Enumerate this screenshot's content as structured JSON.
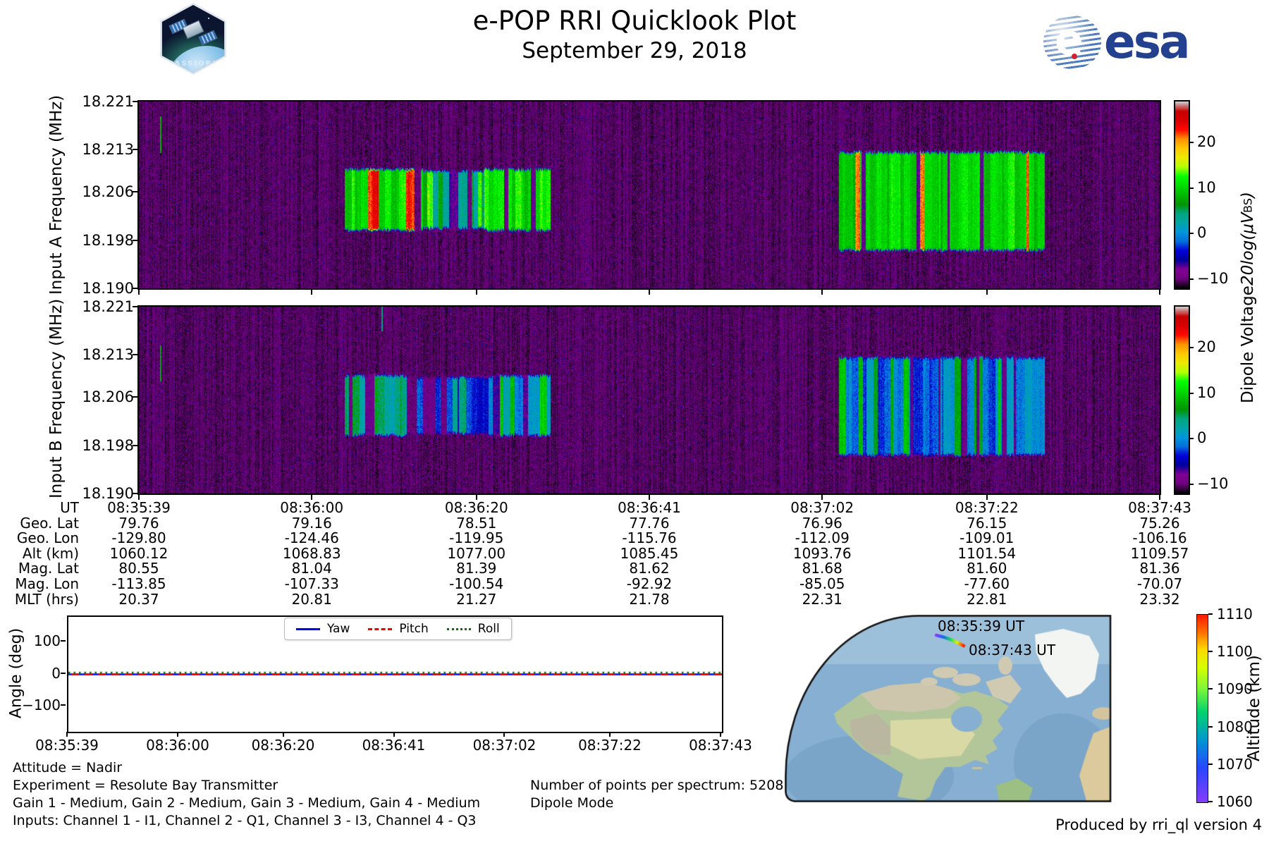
{
  "header": {
    "title": "e-POP RRI Quicklook Plot",
    "date": "September 29, 2018",
    "mission_patch_label": "CASSIOPE",
    "esa_logo_text": "esa",
    "esa_globe_letter": "e"
  },
  "colorbar_label": {
    "prefix": "Dipole Voltage ",
    "math": "20log(μV",
    "sub": "BS",
    "close": ")"
  },
  "chart_data": [
    {
      "id": "input_a_spectrogram",
      "type": "heatmap",
      "ylabel": "Input A Frequency (MHz)",
      "yticks": [
        "18.221",
        "18.213",
        "18.206",
        "18.198",
        "18.190"
      ],
      "ylim_mhz": [
        18.19,
        18.221
      ],
      "x_start_ut": "08:35:39",
      "x_end_ut": "08:37:43",
      "duration_s": 124,
      "colormap": "nipy_spectral",
      "value_range": [
        -12,
        29
      ],
      "colorbar_ticks": [
        "20",
        "10",
        "0",
        "−10"
      ],
      "background_level_db": -10.5,
      "bursts": [
        {
          "t_start_s": 25,
          "t_end_s": 34.5,
          "f_low_mhz": 18.2,
          "f_high_mhz": 18.2095,
          "base_level": 11,
          "hot_level": 23,
          "hot_fraction": 0.2,
          "gap_fraction": 0.1
        },
        {
          "t_start_s": 34.5,
          "t_end_s": 42,
          "f_low_mhz": 18.2003,
          "f_high_mhz": 18.2092,
          "base_level": 5,
          "hot_level": 13,
          "hot_fraction": 0.06,
          "gap_fraction": 0.22
        },
        {
          "t_start_s": 42,
          "t_end_s": 50,
          "f_low_mhz": 18.2,
          "f_high_mhz": 18.2095,
          "base_level": 11,
          "hot_level": 23,
          "hot_fraction": 0.16,
          "gap_fraction": 0.1
        },
        {
          "t_start_s": 85,
          "t_end_s": 110,
          "f_low_mhz": 18.1967,
          "f_high_mhz": 18.2123,
          "base_level": 10,
          "hot_level": 21,
          "hot_fraction": 0.06,
          "gap_fraction": 0.16
        }
      ],
      "artifacts": [
        {
          "t_s": 2.6,
          "f_low_mhz": 18.2125,
          "f_high_mhz": 18.2185,
          "level": 8
        }
      ]
    },
    {
      "id": "input_b_spectrogram",
      "type": "heatmap",
      "ylabel": "Input B Frequency (MHz)",
      "yticks": [
        "18.221",
        "18.213",
        "18.206",
        "18.198",
        "18.190"
      ],
      "ylim_mhz": [
        18.19,
        18.221
      ],
      "x_start_ut": "08:35:39",
      "x_end_ut": "08:37:43",
      "duration_s": 124,
      "colormap": "nipy_spectral",
      "value_range": [
        -12,
        29
      ],
      "colorbar_ticks": [
        "20",
        "10",
        "0",
        "−10"
      ],
      "background_level_db": -10.5,
      "bursts": [
        {
          "t_start_s": 25,
          "t_end_s": 32.5,
          "f_low_mhz": 18.2,
          "f_high_mhz": 18.2093,
          "base_level": 4,
          "hot_level": 11,
          "hot_fraction": 0.12,
          "gap_fraction": 0.22
        },
        {
          "t_start_s": 32.5,
          "t_end_s": 42.5,
          "f_low_mhz": 18.2003,
          "f_high_mhz": 18.209,
          "base_level": -3,
          "hot_level": 4,
          "hot_fraction": 0.08,
          "gap_fraction": 0.35
        },
        {
          "t_start_s": 42.5,
          "t_end_s": 50,
          "f_low_mhz": 18.2,
          "f_high_mhz": 18.2093,
          "base_level": 1,
          "hot_level": 9,
          "hot_fraction": 0.1,
          "gap_fraction": 0.28
        },
        {
          "t_start_s": 85,
          "t_end_s": 110,
          "f_low_mhz": 18.1967,
          "f_high_mhz": 18.2123,
          "base_level": -1,
          "hot_level": 8,
          "hot_fraction": 0.1,
          "gap_fraction": 0.22
        }
      ],
      "artifacts": [
        {
          "t_s": 2.6,
          "f_low_mhz": 18.2085,
          "f_high_mhz": 18.2145,
          "level": 7
        },
        {
          "t_s": 29.5,
          "f_low_mhz": 18.217,
          "f_high_mhz": 18.221,
          "level": 4
        }
      ]
    },
    {
      "id": "attitude_angles",
      "type": "line",
      "ylabel": "Angle (deg)",
      "ylim_deg": [
        -180,
        180
      ],
      "yticks": [
        "100",
        "0",
        "−100"
      ],
      "xticks_ut": [
        "08:35:39",
        "08:36:00",
        "08:36:20",
        "08:36:41",
        "08:37:02",
        "08:37:22",
        "08:37:43"
      ],
      "xtick_offsets_s": [
        0,
        21,
        41,
        62,
        83,
        103,
        124
      ],
      "duration_s": 124,
      "legend_position": "top-center",
      "series": [
        {
          "name": "Yaw",
          "style": "solid",
          "color": "#0000ee",
          "value_deg": 0
        },
        {
          "name": "Pitch",
          "style": "dashed",
          "color": "#ee0000",
          "value_deg": 0
        },
        {
          "name": "Roll",
          "style": "dotted",
          "color": "#007700",
          "value_deg": 0
        }
      ]
    },
    {
      "id": "ephemeris_table",
      "type": "table",
      "row_labels": [
        "UT",
        "Geo. Lat",
        "Geo. Lon",
        "Alt (km)",
        "Mag. Lat",
        "Mag. Lon",
        "MLT (hrs)"
      ],
      "columns": [
        [
          "08:35:39",
          "79.76",
          "-129.80",
          "1060.12",
          "80.55",
          "-113.85",
          "20.37"
        ],
        [
          "08:36:00",
          "79.16",
          "-124.46",
          "1068.83",
          "81.04",
          "-107.33",
          "20.81"
        ],
        [
          "08:36:20",
          "78.51",
          "-119.95",
          "1077.00",
          "81.39",
          "-100.54",
          "21.27"
        ],
        [
          "08:36:41",
          "77.76",
          "-115.76",
          "1085.45",
          "81.62",
          "-92.92",
          "21.78"
        ],
        [
          "08:37:02",
          "76.96",
          "-112.09",
          "1093.76",
          "81.68",
          "-85.05",
          "22.31"
        ],
        [
          "08:37:22",
          "76.15",
          "-109.01",
          "1101.54",
          "81.60",
          "-77.60",
          "22.81"
        ],
        [
          "08:37:43",
          "75.26",
          "-106.16",
          "1109.57",
          "81.36",
          "-70.07",
          "23.32"
        ]
      ]
    },
    {
      "id": "ground_track_map",
      "type": "map",
      "track_start_label": "08:35:39 UT",
      "track_end_label": "08:37:43 UT",
      "track_altitude_km": [
        1060.12,
        1109.57
      ],
      "colorbar_label": "Altitude (km)",
      "colorbar_ticks": [
        "1110",
        "1100",
        "1090",
        "1080",
        "1070",
        "1060"
      ],
      "colorbar_range": [
        1060,
        1110
      ],
      "colormap": "rainbow"
    }
  ],
  "annotations": {
    "attitude": "Attitude = Nadir",
    "experiment": "Experiment = Resolute Bay Transmitter",
    "gains": "Gain 1 - Medium, Gain 2 - Medium, Gain 3 - Medium, Gain 4 - Medium",
    "inputs": "Inputs: Channel 1 - I1, Channel 2 - Q1, Channel 3 - I3, Channel 4 - Q3",
    "points_per_spectrum": "Number of points per spectrum: 5208",
    "mode": "Dipole Mode",
    "produced_by": "Produced by rri_ql version 4"
  }
}
